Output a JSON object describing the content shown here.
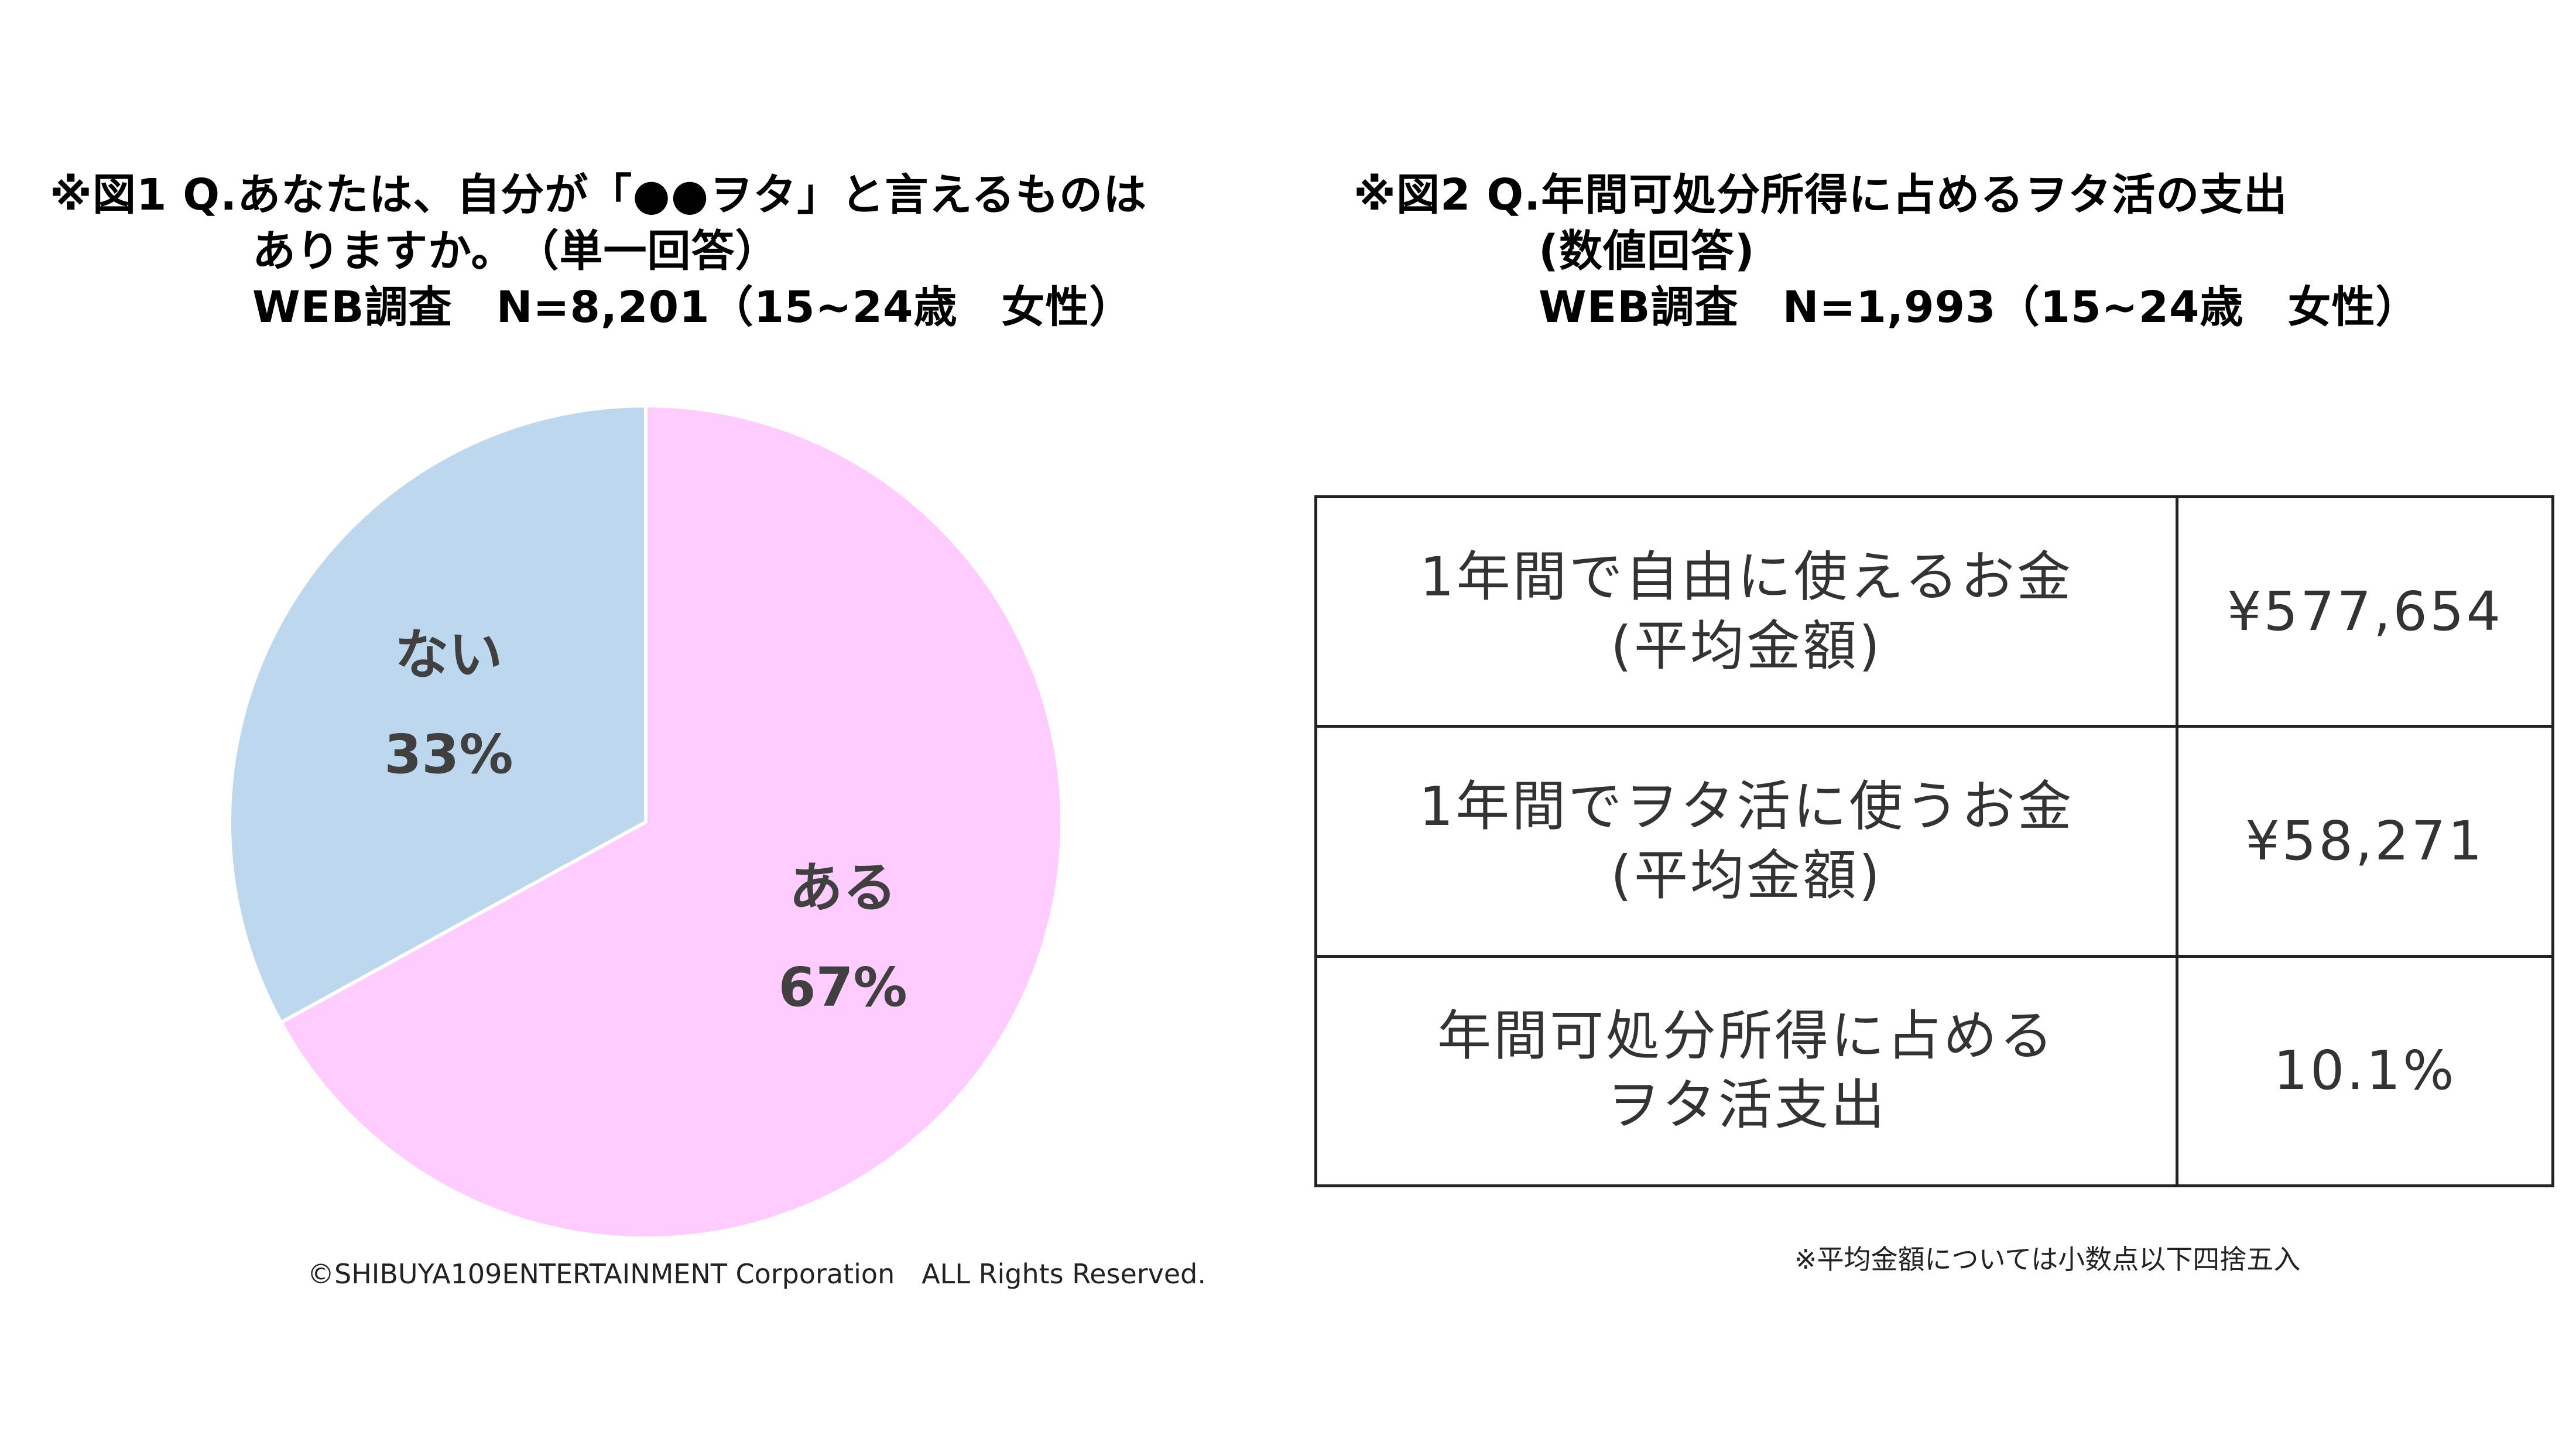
{
  "figure1": {
    "title_lines": [
      "※図1 Q.あなたは、自分が「●●ヲタ」と言えるものは",
      "ありますか。　（単一回答）",
      "WEB調査　N=8,201（15~24歳　女性）"
    ],
    "copyright": "©SHIBUYA109ENTERTAINMENT Corporation　ALL Rights Reserved."
  },
  "figure2": {
    "title_lines": [
      "※図2 Q.年間可処分所得に占めるヲタ活の支出",
      "(数値回答)",
      "WEB調査　N=1,993（15~24歳　女性）"
    ],
    "table": {
      "rows": [
        {
          "label_lines": [
            "1年間で自由に使えるお金",
            "(平均金額)"
          ],
          "value": "¥577,654"
        },
        {
          "label_lines": [
            "1年間でヲタ活に使うお金",
            "(平均金額)"
          ],
          "value": "¥58,271"
        },
        {
          "label_lines": [
            "年間可処分所得に占める",
            "ヲタ活支出"
          ],
          "value": "10.1%"
        }
      ]
    },
    "note": "※平均金額については小数点以下四捨五入"
  },
  "chart_data": {
    "type": "pie",
    "slices": [
      {
        "label": "ある",
        "value": 67,
        "value_label": "67%",
        "color": "#FFCCFF"
      },
      {
        "label": "ない",
        "value": 33,
        "value_label": "33%",
        "color": "#BDD7EE"
      }
    ],
    "start": "12 o'clock",
    "direction": "clockwise"
  }
}
